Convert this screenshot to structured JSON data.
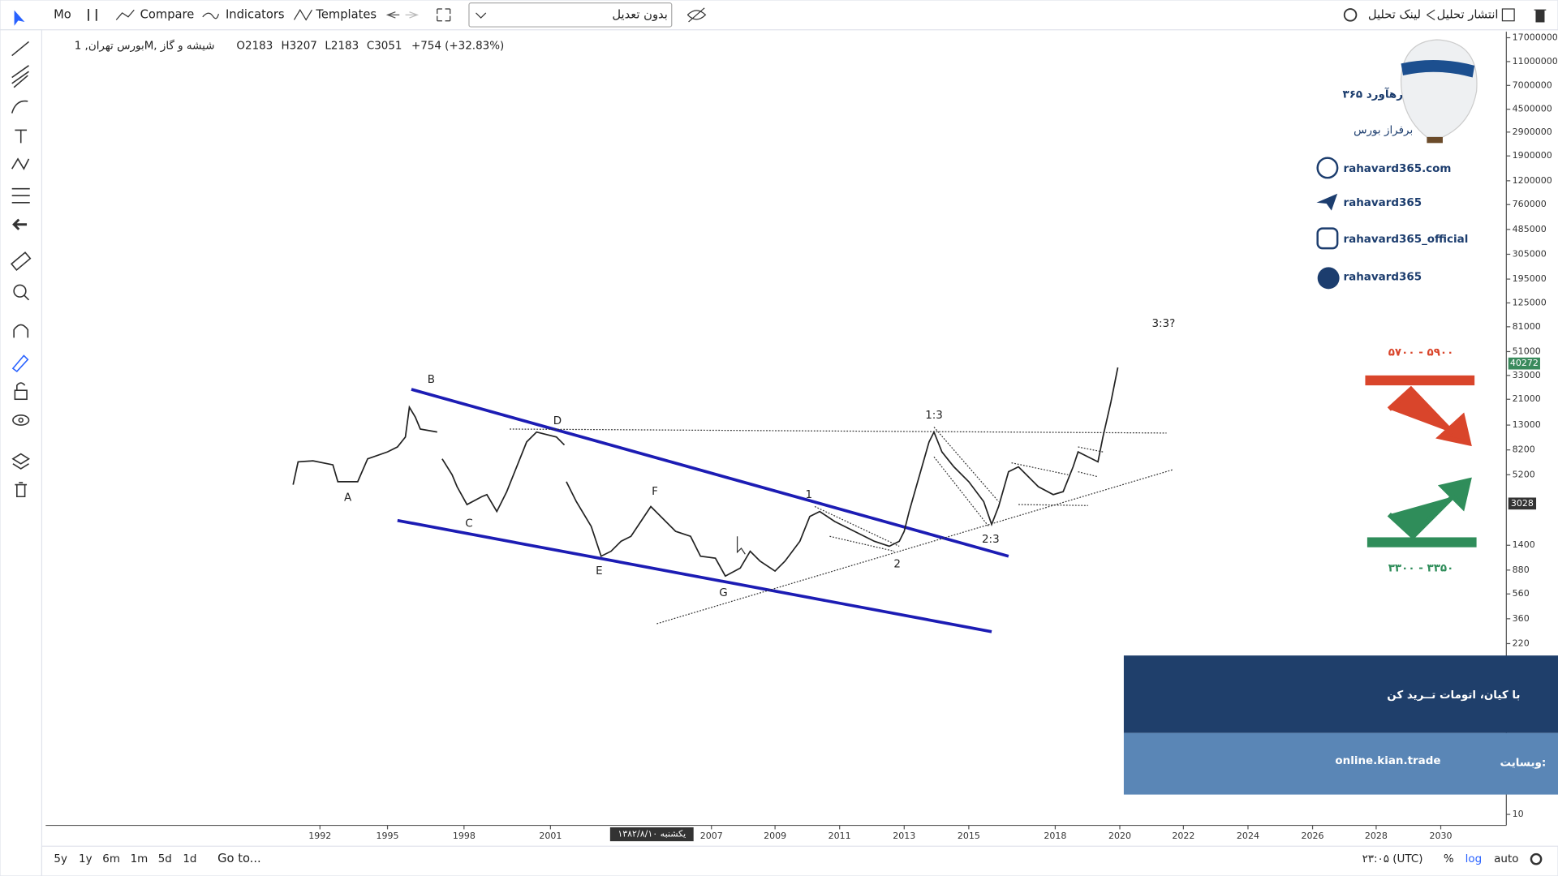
{
  "toolbar": {
    "symbol": "Mo",
    "compare": "Compare",
    "indicators": "Indicators",
    "templates": "Templates",
    "adjustment": "بدون تعدیل",
    "publish": "انتشار تحلیل",
    "share_link": "لینک تحلیل"
  },
  "legend": {
    "symbol": "بورس تهران, 1M, شیشه و گاز",
    "open": "O2183",
    "high": "H3207",
    "low": "L2183",
    "close": "C3051",
    "change": "+754 (+32.83%)"
  },
  "chart": {
    "price_axis": [
      "17000000",
      "11000000",
      "7000000",
      "4500000",
      "2900000",
      "1900000",
      "1200000",
      "760000",
      "485000",
      "305000",
      "195000",
      "125000",
      "81000",
      "51000",
      "33000",
      "21000",
      "13000",
      "8200",
      "5200",
      "1400",
      "880",
      "560",
      "360",
      "220",
      "10"
    ],
    "last_price": "40272",
    "marker_price": "3028",
    "time_axis": [
      "1992",
      "1995",
      "1998",
      "2001",
      "2007",
      "2009",
      "2011",
      "2013",
      "2015",
      "2018",
      "2020",
      "2022",
      "2024",
      "2026",
      "2028",
      "2030"
    ],
    "crosshair_date": "یکشنبه ۱۳۸۲/۸/۱۰",
    "wave_labels": [
      "A",
      "B",
      "C",
      "D",
      "E",
      "F",
      "G",
      "1",
      "2",
      "1:3",
      "2:3",
      "3:3?"
    ]
  },
  "branding": {
    "logo": "رهآورد ۳۶۵",
    "slogan": "برفراز بورس",
    "links": [
      "rahavard365.com",
      "rahavard365",
      "rahavard365_official",
      "rahavard365"
    ]
  },
  "targets": {
    "resistance": "۵۷۰۰ - ۵۹۰۰",
    "support": "۳۳۰۰ - ۳۳۵۰"
  },
  "banner": {
    "headline": "با کیان، اتومات تــرید کن",
    "site_label": "وبسایت:",
    "site": "online.kian.trade"
  },
  "bottom_bar": {
    "ranges": [
      "5y",
      "1y",
      "6m",
      "1m",
      "5d",
      "1d"
    ],
    "goto": "Go to...",
    "time": "۲۳:۰۵ (UTC)",
    "percent": "%",
    "log": "log",
    "auto": "auto"
  }
}
